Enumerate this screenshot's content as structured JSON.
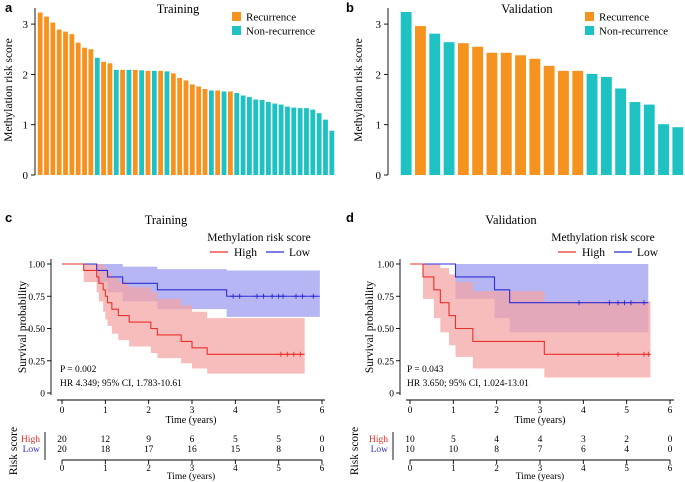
{
  "colors": {
    "recurrence": "#F6921E",
    "non_recurrence": "#1EC2C2",
    "high": "#E8312B",
    "low": "#2D2DD4",
    "high_band": "#F4A3A3",
    "low_band": "#9E9EF0",
    "axis": "#000000"
  },
  "legend_barchart": {
    "recurrence": "Recurrence",
    "non_recurrence": "Non-recurrence"
  },
  "km_legend": {
    "title": "Methylation risk score",
    "high": "High",
    "low": "Low"
  },
  "chart_data": [
    {
      "panel": "a",
      "type": "bar",
      "title": "Training",
      "ylabel": "Methylation risk score",
      "ylim": [
        0,
        3.3
      ],
      "yticks": [
        "0",
        "1",
        "2",
        "3"
      ],
      "values": [
        3.23,
        3.15,
        3.03,
        2.89,
        2.85,
        2.8,
        2.63,
        2.53,
        2.5,
        2.33,
        2.25,
        2.22,
        2.09,
        2.09,
        2.09,
        2.09,
        2.08,
        2.07,
        2.07,
        2.07,
        2.06,
        2.02,
        1.93,
        1.88,
        1.8,
        1.76,
        1.71,
        1.68,
        1.68,
        1.66,
        1.66,
        1.63,
        1.58,
        1.55,
        1.5,
        1.49,
        1.45,
        1.42,
        1.4,
        1.36,
        1.34,
        1.33,
        1.33,
        1.3,
        1.23,
        1.1,
        0.88
      ],
      "groups": [
        "R",
        "R",
        "R",
        "R",
        "R",
        "R",
        "R",
        "R",
        "R",
        "N",
        "R",
        "R",
        "N",
        "R",
        "N",
        "R",
        "N",
        "R",
        "N",
        "R",
        "N",
        "R",
        "R",
        "R",
        "R",
        "R",
        "R",
        "N",
        "R",
        "N",
        "R",
        "N",
        "N",
        "N",
        "N",
        "N",
        "N",
        "N",
        "N",
        "N",
        "N",
        "N",
        "N",
        "N",
        "N",
        "N",
        "N"
      ]
    },
    {
      "panel": "b",
      "type": "bar",
      "title": "Validation",
      "ylabel": "Methylation risk score",
      "ylim": [
        0,
        3.3
      ],
      "yticks": [
        "0",
        "1",
        "2",
        "3"
      ],
      "values": [
        3.24,
        2.96,
        2.81,
        2.64,
        2.62,
        2.55,
        2.43,
        2.43,
        2.38,
        2.31,
        2.17,
        2.07,
        2.07,
        2.01,
        1.95,
        1.72,
        1.45,
        1.4,
        1.01,
        0.95
      ],
      "groups": [
        "N",
        "R",
        "N",
        "N",
        "R",
        "R",
        "R",
        "R",
        "R",
        "R",
        "R",
        "R",
        "R",
        "N",
        "N",
        "N",
        "N",
        "N",
        "N",
        "N"
      ]
    },
    {
      "panel": "c",
      "type": "line",
      "title": "Training",
      "ylabel": "Survival probability",
      "xlabel": "Time (years)",
      "xlim": [
        0,
        6
      ],
      "ylim": [
        0,
        1
      ],
      "xticks": [
        "0",
        "1",
        "2",
        "3",
        "4",
        "5",
        "6"
      ],
      "yticks": [
        "0",
        "0.25",
        "0.50",
        "0.75",
        "1.00"
      ],
      "pvalue": "P = 0.002",
      "hr": "HR 4.349; 95% CI, 1.783-10.61",
      "series": [
        {
          "name": "High",
          "x": [
            0,
            0.45,
            0.5,
            0.8,
            0.85,
            0.95,
            1.0,
            1.05,
            1.15,
            1.3,
            1.55,
            2.05,
            2.2,
            2.75,
            3.0,
            3.35,
            5.6
          ],
          "y": [
            1.0,
            1.0,
            0.95,
            0.9,
            0.85,
            0.8,
            0.75,
            0.7,
            0.65,
            0.6,
            0.55,
            0.5,
            0.45,
            0.4,
            0.35,
            0.3,
            0.3
          ],
          "upper": [
            1.0,
            1.0,
            1.0,
            1.0,
            1.0,
            0.98,
            0.96,
            0.93,
            0.9,
            0.86,
            0.82,
            0.78,
            0.73,
            0.68,
            0.63,
            0.58,
            0.58
          ],
          "lower": [
            1.0,
            1.0,
            0.86,
            0.78,
            0.71,
            0.63,
            0.57,
            0.52,
            0.46,
            0.41,
            0.36,
            0.31,
            0.27,
            0.23,
            0.19,
            0.15,
            0.15
          ],
          "censor_x": [
            5.05,
            5.2,
            5.35,
            5.5
          ]
        },
        {
          "name": "Low",
          "x": [
            0,
            0.45,
            0.8,
            1.05,
            1.4,
            2.2,
            3.8,
            5.95
          ],
          "y": [
            1.0,
            1.0,
            0.95,
            0.9,
            0.85,
            0.8,
            0.75,
            0.75
          ],
          "upper": [
            1.0,
            1.0,
            1.0,
            1.0,
            0.98,
            0.96,
            0.95,
            0.95
          ],
          "lower": [
            1.0,
            1.0,
            0.86,
            0.78,
            0.71,
            0.65,
            0.59,
            0.59
          ],
          "censor_x": [
            3.95,
            4.1,
            4.5,
            4.65,
            4.85,
            5.0,
            5.1,
            5.4,
            5.55,
            5.8
          ]
        }
      ],
      "risk_table": {
        "label": "Risk score",
        "high_label": "High",
        "low_label": "Low",
        "high": [
          "20",
          "12",
          "9",
          "6",
          "5",
          "5",
          "0"
        ],
        "low": [
          "20",
          "18",
          "17",
          "16",
          "15",
          "8",
          "0"
        ],
        "xlabel": "Time (years)",
        "xticks": [
          "0",
          "1",
          "2",
          "3",
          "4",
          "5",
          "6"
        ]
      }
    },
    {
      "panel": "d",
      "type": "line",
      "title": "Validation",
      "ylabel": "Survival probability",
      "xlabel": "Time (years)",
      "xlim": [
        0,
        6
      ],
      "ylim": [
        0,
        1
      ],
      "xticks": [
        "0",
        "1",
        "2",
        "3",
        "4",
        "5",
        "6"
      ],
      "yticks": [
        "0",
        "0.25",
        "0.50",
        "0.75",
        "1.00"
      ],
      "pvalue": "P = 0.043",
      "hr": "HR 3.650; 95% CI, 1.024-13.01",
      "series": [
        {
          "name": "High",
          "x": [
            0,
            0.3,
            0.55,
            0.7,
            0.9,
            1.05,
            1.45,
            3.1,
            5.55
          ],
          "y": [
            1.0,
            0.9,
            0.8,
            0.7,
            0.6,
            0.5,
            0.4,
            0.3,
            0.3
          ],
          "upper": [
            1.0,
            1.0,
            1.0,
            0.97,
            0.92,
            0.86,
            0.79,
            0.71,
            0.71
          ],
          "lower": [
            1.0,
            0.73,
            0.58,
            0.47,
            0.37,
            0.28,
            0.19,
            0.12,
            0.12
          ],
          "censor_x": [
            4.8,
            5.4,
            5.5
          ]
        },
        {
          "name": "Low",
          "x": [
            0,
            1.05,
            1.95,
            2.3,
            5.5
          ],
          "y": [
            1.0,
            0.9,
            0.8,
            0.7,
            0.7
          ],
          "upper": [
            1.0,
            1.0,
            1.0,
            1.0,
            1.0
          ],
          "lower": [
            1.0,
            0.73,
            0.58,
            0.47,
            0.47
          ],
          "censor_x": [
            3.9,
            4.6,
            4.8,
            4.95,
            5.1,
            5.4
          ]
        }
      ],
      "risk_table": {
        "label": "Risk score",
        "high_label": "High",
        "low_label": "Low",
        "high": [
          "10",
          "5",
          "4",
          "4",
          "3",
          "2",
          "0"
        ],
        "low": [
          "10",
          "10",
          "8",
          "7",
          "6",
          "4",
          "0"
        ],
        "xlabel": "Time (years)",
        "xticks": [
          "0",
          "1",
          "2",
          "3",
          "4",
          "5",
          "6"
        ]
      }
    }
  ]
}
